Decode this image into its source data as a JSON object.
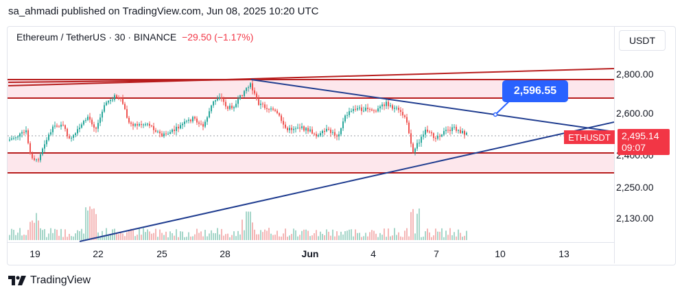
{
  "publish_line": "sa_ahmadi published on TradingView.com, Jun 08, 2025 10:20 UTC",
  "symbol": {
    "name": "Ethereum / TetherUS · 30 · BINANCE",
    "change": "−29.50 (−1.17%)"
  },
  "currency": "USDT",
  "price_axis": [
    "2,800.00",
    "2,600.00",
    "2,400.00",
    "2,250.00",
    "2,130.00"
  ],
  "time_axis": [
    "19",
    "22",
    "25",
    "28",
    "Jun",
    "4",
    "7",
    "10",
    "13"
  ],
  "callout": "2,596.55",
  "pair": "ETHUSDT",
  "last_price": "2,495.14",
  "countdown": "09:07",
  "brand": "TradingView",
  "colors": {
    "up": "#26a69a",
    "down": "#ef5350",
    "accent": "#2962ff",
    "trendline": "#1f3c8f",
    "resistance": "#b71c1c",
    "zone_fill": "#fde7ec",
    "tag": "#f23645"
  }
}
